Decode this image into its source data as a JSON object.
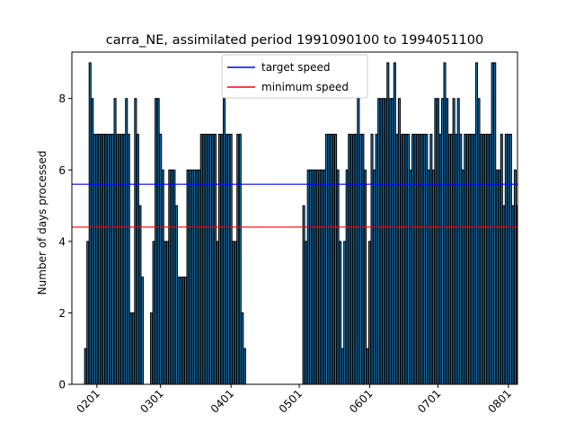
{
  "chart_data": {
    "type": "bar",
    "title": "carra_NE, assimilated period 1991090100 to 1994051100",
    "xlabel": "",
    "ylabel": "Number of days processed",
    "ylim": [
      0,
      9.3
    ],
    "yticks": [
      0,
      2,
      4,
      6,
      8
    ],
    "xlim": [
      -11,
      185
    ],
    "xticks": [
      {
        "label": "0201",
        "x": 0
      },
      {
        "label": "0301",
        "x": 28
      },
      {
        "label": "0401",
        "x": 59
      },
      {
        "label": "0501",
        "x": 89
      },
      {
        "label": "0601",
        "x": 120
      },
      {
        "label": "0701",
        "x": 150
      },
      {
        "label": "0801",
        "x": 181
      }
    ],
    "bar_color": "#1f77b4",
    "bar_edge_color": "#000000",
    "grid": false,
    "legend_position": "upper-center",
    "series": [
      {
        "name": "target speed",
        "type": "hline",
        "value": 5.6,
        "color": "#0000ff"
      },
      {
        "name": "minimum speed",
        "type": "hline",
        "value": 4.4,
        "color": "#ff0000"
      }
    ],
    "x_start": -5,
    "values": [
      1,
      4,
      9,
      8,
      7,
      7,
      7,
      7,
      7,
      7,
      7,
      7,
      7,
      8,
      7,
      7,
      7,
      7,
      8,
      7,
      2,
      2,
      8,
      7,
      5,
      3,
      0,
      0,
      0,
      2,
      4,
      8,
      8,
      7,
      6,
      4,
      4,
      6,
      6,
      6,
      5,
      3,
      3,
      3,
      3,
      6,
      6,
      6,
      6,
      6,
      6,
      7,
      7,
      7,
      7,
      7,
      7,
      7,
      4,
      7,
      7,
      8,
      7,
      7,
      7,
      4,
      4,
      7,
      7,
      2,
      1,
      0,
      0,
      0,
      0,
      0,
      0,
      0,
      0,
      0,
      0,
      0,
      0,
      0,
      0,
      0,
      0,
      0,
      0,
      0,
      0,
      0,
      0,
      0,
      0,
      0,
      5,
      4,
      6,
      6,
      6,
      6,
      6,
      6,
      6,
      6,
      7,
      7,
      7,
      7,
      7,
      6,
      4,
      1,
      4,
      6,
      7,
      7,
      7,
      7,
      8,
      7,
      7,
      6,
      1,
      4,
      7,
      6,
      7,
      8,
      8,
      8,
      8,
      9,
      8,
      8,
      9,
      7,
      8,
      7,
      7,
      7,
      7,
      6,
      7,
      7,
      7,
      7,
      7,
      7,
      7,
      6,
      7,
      6,
      8,
      8,
      7,
      8,
      9,
      8,
      7,
      7,
      8,
      7,
      8,
      7,
      6,
      7,
      7,
      7,
      7,
      7,
      9,
      8,
      7,
      7,
      7,
      7,
      7,
      9,
      9,
      6,
      6,
      7,
      5,
      7,
      7,
      7,
      5,
      6,
      5
    ]
  }
}
